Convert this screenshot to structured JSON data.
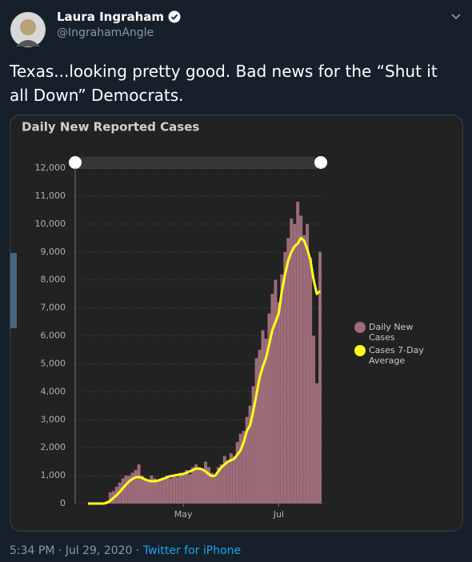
{
  "tweet": {
    "name": "Laura Ingraham",
    "handle": "@IngrahamAngle",
    "text": "Texas...looking pretty good.  Bad news for the “Shut it all Down” Democrats.",
    "timestamp": "5:34 PM · Jul 29, 2020 ·",
    "source": "Twitter for iPhone"
  },
  "chart_data": {
    "type": "bar",
    "title": "Daily New Reported Cases",
    "categories": [
      null,
      null,
      null,
      null,
      null,
      null,
      null,
      null,
      null,
      null,
      null,
      null,
      null,
      null,
      null,
      null,
      null,
      null,
      null,
      null,
      null,
      null,
      null,
      null,
      null,
      null,
      null,
      null,
      null,
      null,
      "May",
      null,
      null,
      null,
      null,
      null,
      null,
      null,
      null,
      null,
      null,
      null,
      null,
      null,
      null,
      null,
      null,
      null,
      null,
      null,
      null,
      null,
      null,
      null,
      null,
      null,
      null,
      null,
      null,
      null,
      "Jul",
      null,
      null,
      null,
      null,
      null,
      null,
      null,
      null,
      null,
      null,
      null,
      null,
      null
    ],
    "series": [
      {
        "name": "Daily New Cases",
        "type": "bar",
        "color": "#9c6c78",
        "values": [
          0,
          0,
          0,
          0,
          0,
          10,
          100,
          400,
          450,
          600,
          750,
          900,
          1000,
          1000,
          1100,
          1200,
          1400,
          1000,
          900,
          800,
          1000,
          900,
          800,
          850,
          900,
          1000,
          900,
          1000,
          950,
          1100,
          1100,
          1200,
          1050,
          1300,
          1400,
          1300,
          1200,
          1500,
          1300,
          1100,
          1000,
          1300,
          1400,
          1700,
          1500,
          1800,
          1700,
          2200,
          2500,
          2600,
          3100,
          3500,
          4200,
          5200,
          5500,
          6200,
          5900,
          6800,
          7500,
          8000,
          7200,
          8200,
          9000,
          9500,
          10200,
          10000,
          10800,
          10300,
          9600,
          10000,
          8800,
          6000,
          4300,
          9000
        ]
      },
      {
        "name": "Cases 7-Day Average",
        "type": "line",
        "color": "#ffff1a",
        "values": [
          0,
          0,
          0,
          0,
          0,
          0,
          30,
          100,
          200,
          300,
          420,
          550,
          680,
          800,
          880,
          940,
          950,
          920,
          860,
          820,
          800,
          800,
          820,
          860,
          900,
          950,
          980,
          1000,
          1020,
          1040,
          1060,
          1100,
          1150,
          1200,
          1250,
          1250,
          1220,
          1150,
          1050,
          980,
          1000,
          1150,
          1300,
          1400,
          1500,
          1550,
          1600,
          1750,
          1900,
          2200,
          2600,
          2800,
          3300,
          3900,
          4500,
          4900,
          5200,
          5700,
          6200,
          6500,
          6800,
          7600,
          8200,
          8700,
          9000,
          9200,
          9300,
          9500,
          9400,
          9100,
          8700,
          8000,
          7500,
          7600
        ]
      }
    ],
    "ylim": [
      0,
      12000
    ],
    "yticks": [
      0,
      {
        "value": 1000,
        "label": "1,000"
      },
      {
        "value": 2000,
        "label": "2,000"
      },
      {
        "value": 3000,
        "label": "3,000"
      },
      {
        "value": 4000,
        "label": "4,000"
      },
      {
        "value": 5000,
        "label": "5,000"
      },
      {
        "value": 6000,
        "label": "6,000"
      },
      {
        "value": 7000,
        "label": "7,000"
      },
      {
        "value": 8000,
        "label": "8,000"
      },
      {
        "value": 9000,
        "label": "9,000"
      },
      {
        "value": 10000,
        "label": "10,000"
      },
      {
        "value": 11000,
        "label": "11,000"
      },
      {
        "value": 12000,
        "label": "12,000"
      }
    ],
    "grid": true,
    "legend": "right"
  }
}
